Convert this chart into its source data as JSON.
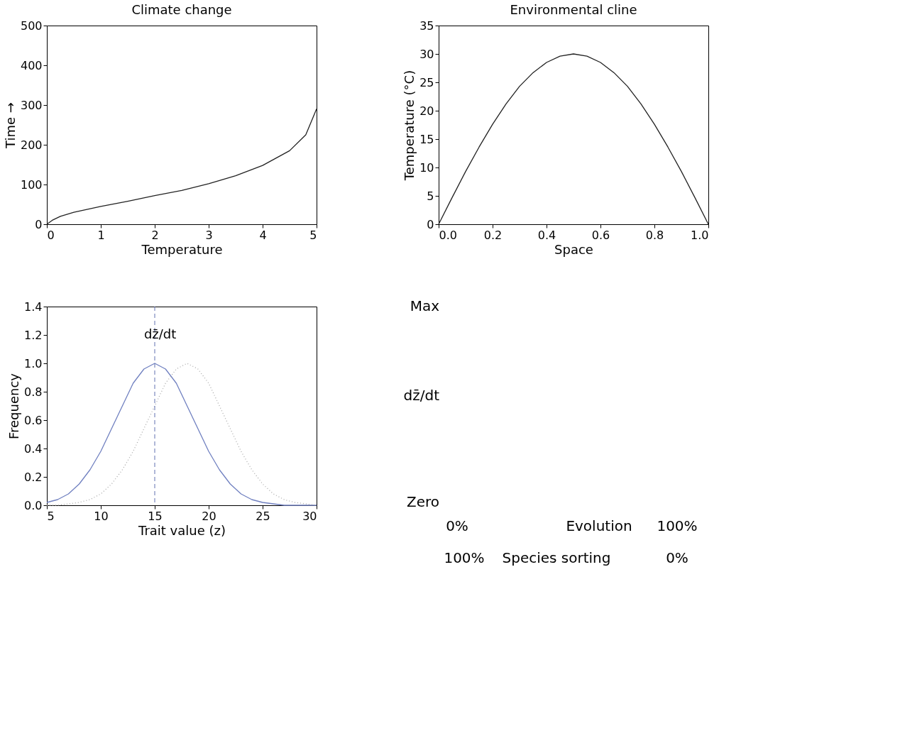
{
  "chart_data": [
    {
      "type": "line",
      "title": "Climate change",
      "xlabel": "Temperature",
      "ylabel": "Time →",
      "xlim": [
        0,
        5
      ],
      "ylim": [
        0,
        500
      ],
      "xticks": [
        0,
        1,
        2,
        3,
        4,
        5
      ],
      "yticks": [
        0,
        100,
        200,
        300,
        400,
        500
      ],
      "grid": false,
      "line_style": "solid",
      "x": [
        0,
        0.1,
        0.25,
        0.5,
        1,
        1.5,
        2,
        2.5,
        3,
        3.5,
        4,
        4.5,
        4.8,
        5
      ],
      "series": [
        {
          "color": "#222222",
          "values": [
            0,
            10,
            20,
            30,
            45,
            58,
            72,
            85,
            102,
            122,
            148,
            185,
            225,
            290
          ]
        }
      ]
    },
    {
      "type": "line",
      "title": "Environmental cline",
      "xlabel": "Space",
      "ylabel": "Temperature (°C)",
      "xlim": [
        0,
        1
      ],
      "ylim": [
        0,
        35
      ],
      "xticks": [
        {
          "value": 0,
          "label": "0.0"
        },
        0.2,
        0.4,
        0.6,
        0.8,
        {
          "value": 1,
          "label": "1.0"
        }
      ],
      "yticks": [
        0,
        5,
        10,
        15,
        20,
        25,
        30,
        35
      ],
      "grid": false,
      "line_style": "solid",
      "x": [
        0,
        0.05,
        0.1,
        0.15,
        0.2,
        0.25,
        0.3,
        0.35,
        0.4,
        0.45,
        0.5,
        0.55,
        0.6,
        0.65,
        0.7,
        0.75,
        0.8,
        0.85,
        0.9,
        0.95,
        1
      ],
      "series": [
        {
          "color": "#222222",
          "values": [
            0,
            4.7,
            9.3,
            13.6,
            17.6,
            21.2,
            24.3,
            26.7,
            28.5,
            29.6,
            30,
            29.6,
            28.5,
            26.7,
            24.3,
            21.2,
            17.6,
            13.6,
            9.3,
            4.7,
            0
          ]
        }
      ]
    },
    {
      "type": "line",
      "xlabel": "Trait value (z)",
      "ylabel": "Frequency",
      "xlim": [
        5,
        30
      ],
      "ylim": [
        0,
        1.4
      ],
      "xticks": [
        5,
        10,
        15,
        20,
        25,
        30
      ],
      "yticks": [
        {
          "value": 0,
          "label": "0.0"
        },
        0.2,
        0.4,
        0.6,
        0.8,
        {
          "value": 1,
          "label": "1.0"
        },
        1.2,
        1.4
      ],
      "grid": false,
      "x": [
        5,
        6,
        7,
        8,
        9,
        10,
        11,
        12,
        13,
        14,
        15,
        16,
        17,
        18,
        19,
        20,
        21,
        22,
        23,
        24,
        25,
        26,
        27,
        28,
        29,
        30
      ],
      "series": [
        {
          "color": "#7080c0",
          "line_style": "solid",
          "values": [
            0.02,
            0.04,
            0.08,
            0.15,
            0.25,
            0.38,
            0.54,
            0.7,
            0.86,
            0.96,
            1.0,
            0.96,
            0.86,
            0.7,
            0.54,
            0.38,
            0.25,
            0.15,
            0.08,
            0.04,
            0.02,
            0.01,
            0.0,
            0.0,
            0.0,
            0.0
          ]
        },
        {
          "color": "#aaaaaa",
          "line_style": "dotted",
          "values": [
            0.0,
            0.0,
            0.01,
            0.02,
            0.04,
            0.08,
            0.15,
            0.25,
            0.38,
            0.54,
            0.7,
            0.86,
            0.96,
            1.0,
            0.96,
            0.86,
            0.7,
            0.54,
            0.38,
            0.25,
            0.15,
            0.08,
            0.04,
            0.02,
            0.01,
            0.0
          ]
        }
      ],
      "ref_lines": [
        {
          "axis": "x",
          "value": 15,
          "color": "#6070b0",
          "line_style": "dashed"
        }
      ],
      "annotations": [
        "dz̄/dt"
      ]
    },
    {
      "type": "other",
      "annotations": [
        "Max",
        "dz̄/dt",
        "Zero",
        "0%",
        "Evolution",
        "100%",
        "100%",
        "Species sorting",
        "0%"
      ]
    }
  ]
}
